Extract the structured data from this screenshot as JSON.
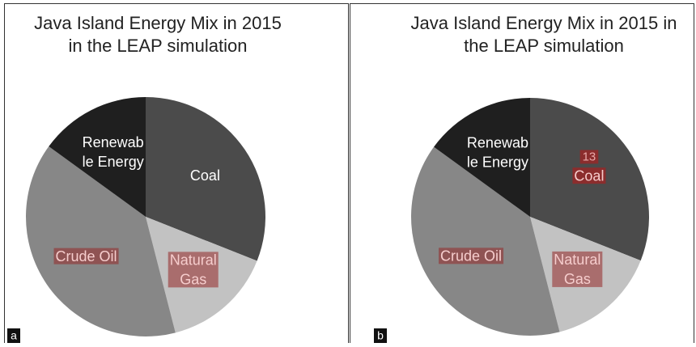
{
  "chart_data": [
    {
      "type": "pie",
      "title": "Java Island Energy Mix in 2015\nin the LEAP simulation",
      "panel": "a",
      "categories": [
        "Coal",
        "Natural\nGas",
        "Crude Oil",
        "Renewab\nle Energy"
      ],
      "values": [
        31,
        15,
        39,
        15
      ],
      "colors": [
        "#4b4b4b",
        "#c2c2c2",
        "#878787",
        "#1f1f1f"
      ]
    },
    {
      "type": "pie",
      "title": "Java Island Energy Mix in 2015 in\nthe LEAP simulation",
      "panel": "b",
      "categories": [
        "Coal",
        "Natural\nGas",
        "Crude Oil",
        "Renewab\nle Energy"
      ],
      "values": [
        31,
        15,
        39,
        15
      ],
      "colors": [
        "#4b4b4b",
        "#c2c2c2",
        "#878787",
        "#1f1f1f"
      ],
      "annotation": "13"
    }
  ]
}
